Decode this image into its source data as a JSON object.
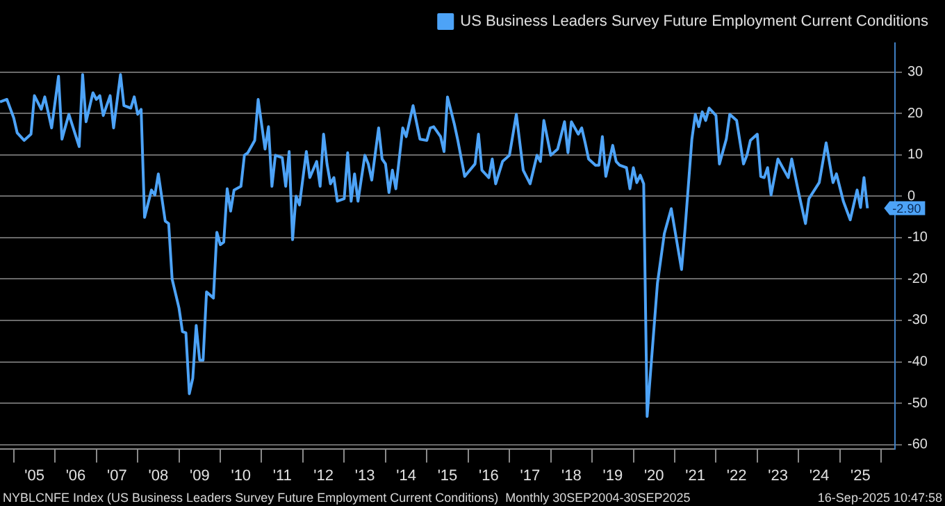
{
  "chart_data": {
    "type": "line",
    "x": [
      "2004-09",
      "2004-11",
      "2005-01",
      "2005-02",
      "2005-04",
      "2005-06",
      "2005-07",
      "2005-09",
      "2005-10",
      "2005-12",
      "2006-02",
      "2006-03",
      "2006-05",
      "2006-08",
      "2006-09",
      "2006-10",
      "2006-12",
      "2007-01",
      "2007-02",
      "2007-03",
      "2007-05",
      "2007-06",
      "2007-08",
      "2007-09",
      "2007-11",
      "2007-12",
      "2008-01",
      "2008-02",
      "2008-03",
      "2008-05",
      "2008-06",
      "2008-07",
      "2008-09",
      "2008-10",
      "2008-11",
      "2009-01",
      "2009-02",
      "2009-03",
      "2009-04",
      "2009-05",
      "2009-06",
      "2009-07",
      "2009-08",
      "2009-09",
      "2009-11",
      "2009-12",
      "2010-01",
      "2010-02",
      "2010-03",
      "2010-04",
      "2010-05",
      "2010-07",
      "2010-08",
      "2010-09",
      "2010-11",
      "2010-12",
      "2011-02",
      "2011-03",
      "2011-04",
      "2011-05",
      "2011-07",
      "2011-08",
      "2011-09",
      "2011-10",
      "2011-11",
      "2011-12",
      "2012-02",
      "2012-03",
      "2012-05",
      "2012-06",
      "2012-07",
      "2012-08",
      "2012-09",
      "2012-10",
      "2012-11",
      "2013-01",
      "2013-02",
      "2013-03",
      "2013-04",
      "2013-05",
      "2013-07",
      "2013-08",
      "2013-09",
      "2013-11",
      "2013-12",
      "2014-01",
      "2014-02",
      "2014-03",
      "2014-04",
      "2014-06",
      "2014-07",
      "2014-09",
      "2014-11",
      "2015-01",
      "2015-02",
      "2015-03",
      "2015-05",
      "2015-06",
      "2015-07",
      "2015-09",
      "2015-10",
      "2015-12",
      "2016-03",
      "2016-04",
      "2016-05",
      "2016-07",
      "2016-08",
      "2016-09",
      "2016-11",
      "2017-01",
      "2017-03",
      "2017-05",
      "2017-07",
      "2017-09",
      "2017-10",
      "2017-11",
      "2018-01",
      "2018-03",
      "2018-05",
      "2018-06",
      "2018-07",
      "2018-09",
      "2018-10",
      "2018-11",
      "2018-12",
      "2019-02",
      "2019-03",
      "2019-04",
      "2019-05",
      "2019-07",
      "2019-08",
      "2019-09",
      "2019-11",
      "2019-12",
      "2020-01",
      "2020-02",
      "2020-03",
      "2020-04",
      "2020-05",
      "2020-08",
      "2020-10",
      "2020-12",
      "2021-03",
      "2021-04",
      "2021-06",
      "2021-07",
      "2021-08",
      "2021-09",
      "2021-10",
      "2021-11",
      "2022-01",
      "2022-02",
      "2022-04",
      "2022-05",
      "2022-07",
      "2022-09",
      "2022-10",
      "2022-11",
      "2023-01",
      "2023-02",
      "2023-03",
      "2023-04",
      "2023-05",
      "2023-07",
      "2023-09",
      "2023-10",
      "2023-11",
      "2024-01",
      "2024-03",
      "2024-04",
      "2024-07",
      "2024-09",
      "2024-11",
      "2024-12",
      "2025-02",
      "2025-04",
      "2025-06",
      "2025-07",
      "2025-08",
      "2025-09"
    ],
    "series": [
      {
        "name": "US Business Leaders Survey Future Employment Current Conditions",
        "color": "#4da3f7",
        "values": [
          22.8,
          23.4,
          18.9,
          15.3,
          13.5,
          15,
          24.3,
          21,
          24,
          16.5,
          29,
          13.8,
          19.8,
          12,
          29.4,
          18,
          25,
          23.4,
          24.3,
          19.5,
          24.3,
          16.5,
          29.4,
          21.9,
          21.3,
          24,
          19.8,
          21,
          -5.1,
          1.5,
          0.3,
          5.4,
          -6,
          -6.6,
          -20,
          -27,
          -32.7,
          -33,
          -47.7,
          -44,
          -31.2,
          -39.6,
          -39.6,
          -23.1,
          -24.6,
          -8.7,
          -11.7,
          -11.1,
          1.8,
          -3.6,
          1.5,
          2.4,
          9.9,
          10.5,
          13.5,
          23.4,
          11.4,
          16.8,
          2.4,
          9.9,
          9.3,
          2.4,
          10.8,
          -10.5,
          0,
          -2.1,
          10.8,
          4.5,
          8.4,
          2.4,
          15,
          7.8,
          3,
          4.5,
          -1.2,
          -0.6,
          10.5,
          -1.2,
          5.4,
          -1.2,
          9.9,
          7.8,
          3.9,
          16.5,
          9,
          7.8,
          0.9,
          6.3,
          1.8,
          16.5,
          14.4,
          21.9,
          13.8,
          13.5,
          16.5,
          16.8,
          14.4,
          10.8,
          24,
          17.4,
          13.5,
          4.8,
          7.8,
          15,
          6.3,
          4.5,
          9,
          3,
          8.4,
          9.9,
          19.8,
          6.3,
          3,
          9.9,
          8.4,
          18.3,
          9.9,
          11.4,
          18,
          10.5,
          18,
          15,
          16.5,
          12.9,
          9,
          7.5,
          7.5,
          14.4,
          4.8,
          12.3,
          8.4,
          7.5,
          6.9,
          1.8,
          6.9,
          3.3,
          5.1,
          3,
          -53.2,
          -21,
          -9,
          -3,
          -17.7,
          -8.1,
          13.8,
          19.8,
          16.8,
          20.4,
          18.3,
          21.3,
          19.5,
          7.8,
          13.8,
          19.8,
          18.3,
          7.8,
          9.9,
          13.5,
          15,
          4.8,
          4.5,
          6.9,
          0.3,
          9,
          6,
          4.5,
          9,
          0.9,
          -6.6,
          -0.6,
          3.3,
          12.9,
          3.3,
          5.4,
          -1.2,
          -5.7,
          1.5,
          -2.7,
          4.5,
          -2.9
        ]
      }
    ],
    "xlim": [
      "2004-09",
      "2026-05"
    ],
    "xticks": [
      {
        "value": "2005",
        "label": null
      },
      {
        "value": "2005-07",
        "label": "'05"
      },
      {
        "value": "2006",
        "label": null
      },
      {
        "value": "2006-07",
        "label": "'06"
      },
      {
        "value": "2007",
        "label": null
      },
      {
        "value": "2007-07",
        "label": "'07"
      },
      {
        "value": "2008",
        "label": null
      },
      {
        "value": "2008-07",
        "label": "'08"
      },
      {
        "value": "2009",
        "label": null
      },
      {
        "value": "2009-07",
        "label": "'09"
      },
      {
        "value": "2010",
        "label": null
      },
      {
        "value": "2010-07",
        "label": "'10"
      },
      {
        "value": "2011",
        "label": null
      },
      {
        "value": "2011-07",
        "label": "'11"
      },
      {
        "value": "2012",
        "label": null
      },
      {
        "value": "2012-07",
        "label": "'12"
      },
      {
        "value": "2013",
        "label": null
      },
      {
        "value": "2013-07",
        "label": "'13"
      },
      {
        "value": "2014",
        "label": null
      },
      {
        "value": "2014-07",
        "label": "'14"
      },
      {
        "value": "2015",
        "label": null
      },
      {
        "value": "2015-07",
        "label": "'15"
      },
      {
        "value": "2016",
        "label": null
      },
      {
        "value": "2016-07",
        "label": "'16"
      },
      {
        "value": "2017",
        "label": null
      },
      {
        "value": "2017-07",
        "label": "'17"
      },
      {
        "value": "2018",
        "label": null
      },
      {
        "value": "2018-07",
        "label": "'18"
      },
      {
        "value": "2019",
        "label": null
      },
      {
        "value": "2019-07",
        "label": "'19"
      },
      {
        "value": "2020",
        "label": null
      },
      {
        "value": "2020-07",
        "label": "'20"
      },
      {
        "value": "2021",
        "label": null
      },
      {
        "value": "2021-07",
        "label": "'21"
      },
      {
        "value": "2022",
        "label": null
      },
      {
        "value": "2022-07",
        "label": "'22"
      },
      {
        "value": "2023",
        "label": null
      },
      {
        "value": "2023-07",
        "label": "'23"
      },
      {
        "value": "2024",
        "label": null
      },
      {
        "value": "2024-07",
        "label": "'24"
      },
      {
        "value": "2025",
        "label": null
      },
      {
        "value": "2025-07",
        "label": "'25"
      },
      {
        "value": "2026",
        "label": null
      }
    ],
    "ylim": [
      -61,
      37
    ],
    "yticks": [
      -60,
      -50,
      -40,
      -30,
      -20,
      -10,
      0,
      10,
      20,
      30
    ],
    "grid": "y",
    "legend": "top right",
    "marker": "none",
    "line_style": "solid",
    "annotations": [
      "NYBLCNFE Index (US Business Leaders Survey Future Employment Current Conditions)  Monthly 30SEP2004-30SEP2025",
      "16-Sep-2025 10:47:58",
      {
        "text": "-2.90",
        "x": "2025-09",
        "y": -2.9
      }
    ]
  }
}
